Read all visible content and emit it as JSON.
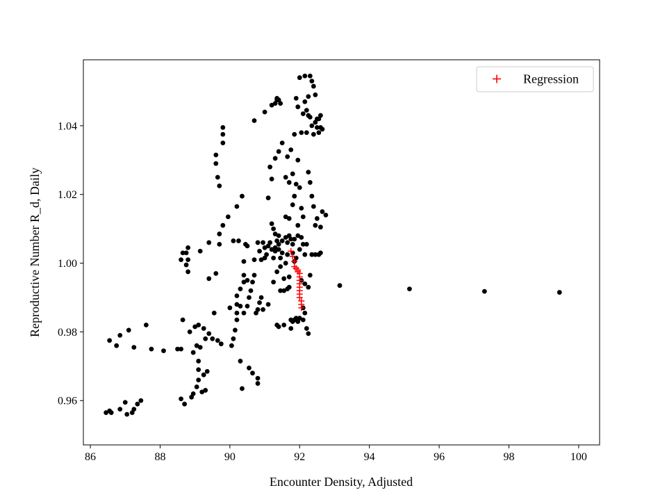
{
  "chart_data": {
    "type": "scatter",
    "title": "",
    "xlabel": "Encounter Density, Adjusted",
    "ylabel": "Reproductive Number R_d, Daily",
    "xlim": [
      85.8,
      100.6
    ],
    "ylim": [
      0.9471,
      1.0592
    ],
    "xticks": [
      86,
      88,
      90,
      92,
      94,
      96,
      98,
      100
    ],
    "xtick_labels": [
      "86",
      "88",
      "90",
      "92",
      "94",
      "96",
      "98",
      "100"
    ],
    "yticks": [
      0.96,
      0.98,
      1.0,
      1.02,
      1.04
    ],
    "ytick_labels": [
      "0.96",
      "0.98",
      "1.00",
      "1.02",
      "1.04"
    ],
    "grid": false,
    "legend": {
      "position": "top-right",
      "entries": [
        {
          "label": "Regression",
          "marker": "plus",
          "color": "#ff0000"
        }
      ]
    },
    "series": [
      {
        "marker": "circle",
        "color": "#000000",
        "points": [
          [
            86.45,
            0.9565
          ],
          [
            86.55,
            0.957
          ],
          [
            86.55,
            0.9775
          ],
          [
            86.6,
            0.9565
          ],
          [
            86.75,
            0.976
          ],
          [
            86.85,
            0.979
          ],
          [
            86.85,
            0.9575
          ],
          [
            87.0,
            0.9595
          ],
          [
            87.05,
            0.956
          ],
          [
            87.1,
            0.9805
          ],
          [
            87.2,
            0.9565
          ],
          [
            87.25,
            0.9575
          ],
          [
            87.25,
            0.9755
          ],
          [
            87.35,
            0.959
          ],
          [
            87.45,
            0.96
          ],
          [
            87.6,
            0.982
          ],
          [
            87.75,
            0.975
          ],
          [
            88.1,
            0.9745
          ],
          [
            88.5,
            0.975
          ],
          [
            88.6,
            0.975
          ],
          [
            88.6,
            0.9605
          ],
          [
            88.65,
            0.9835
          ],
          [
            88.7,
            0.959
          ],
          [
            88.6,
            1.001
          ],
          [
            88.65,
            1.003
          ],
          [
            88.75,
            1.003
          ],
          [
            88.75,
            0.9995
          ],
          [
            88.8,
            1.0045
          ],
          [
            88.8,
            1.001
          ],
          [
            88.8,
            0.9975
          ],
          [
            88.85,
            0.98
          ],
          [
            88.9,
            0.961
          ],
          [
            88.95,
            0.962
          ],
          [
            88.95,
            0.974
          ],
          [
            89.0,
            0.9815
          ],
          [
            89.05,
            0.976
          ],
          [
            89.05,
            0.964
          ],
          [
            89.1,
            0.982
          ],
          [
            89.1,
            0.966
          ],
          [
            89.1,
            0.969
          ],
          [
            89.1,
            0.9715
          ],
          [
            89.15,
            1.0035
          ],
          [
            89.15,
            0.9755
          ],
          [
            89.2,
            0.9625
          ],
          [
            89.25,
            0.981
          ],
          [
            89.25,
            0.9675
          ],
          [
            89.3,
            0.963
          ],
          [
            89.3,
            0.978
          ],
          [
            89.35,
            0.9685
          ],
          [
            89.4,
            0.9795
          ],
          [
            89.4,
            0.9955
          ],
          [
            89.4,
            1.006
          ],
          [
            89.5,
            0.978
          ],
          [
            89.55,
            0.9855
          ],
          [
            89.6,
            0.997
          ],
          [
            89.6,
            1.0315
          ],
          [
            89.6,
            1.029
          ],
          [
            89.65,
            1.025
          ],
          [
            89.65,
            0.9775
          ],
          [
            89.7,
            1.0225
          ],
          [
            89.7,
            1.0055
          ],
          [
            89.7,
            1.0085
          ],
          [
            89.75,
            0.9765
          ],
          [
            89.8,
            1.035
          ],
          [
            89.8,
            1.0375
          ],
          [
            89.8,
            1.0395
          ],
          [
            89.8,
            1.011
          ],
          [
            89.95,
            1.0135
          ],
          [
            90.0,
            0.987
          ],
          [
            90.05,
            0.976
          ],
          [
            90.1,
            0.978
          ],
          [
            90.1,
            1.0065
          ],
          [
            90.15,
            0.9805
          ],
          [
            90.2,
            0.9835
          ],
          [
            90.2,
            0.9855
          ],
          [
            90.2,
            0.988
          ],
          [
            90.2,
            0.9905
          ],
          [
            90.2,
            1.0165
          ],
          [
            90.25,
            1.0065
          ],
          [
            90.3,
            0.9925
          ],
          [
            90.3,
            0.9875
          ],
          [
            90.3,
            0.9715
          ],
          [
            90.35,
            1.0195
          ],
          [
            90.35,
            0.9635
          ],
          [
            90.4,
            0.9945
          ],
          [
            90.4,
            0.9855
          ],
          [
            90.4,
            0.9965
          ],
          [
            90.4,
            1.0005
          ],
          [
            90.45,
            1.0055
          ],
          [
            90.5,
            1.005
          ],
          [
            90.5,
            0.995
          ],
          [
            90.5,
            0.9875
          ],
          [
            90.55,
            0.99
          ],
          [
            90.55,
            0.9695
          ],
          [
            90.6,
            0.992
          ],
          [
            90.65,
            0.9945
          ],
          [
            90.65,
            0.968
          ],
          [
            90.7,
            0.9965
          ],
          [
            90.7,
            1.001
          ],
          [
            90.7,
            1.0415
          ],
          [
            90.75,
            0.9855
          ],
          [
            90.8,
            1.006
          ],
          [
            90.8,
            0.9865
          ],
          [
            90.8,
            0.965
          ],
          [
            90.8,
            0.9665
          ],
          [
            90.85,
            1.0035
          ],
          [
            90.85,
            0.9885
          ],
          [
            90.9,
            1.001
          ],
          [
            90.9,
            0.99
          ],
          [
            90.95,
            1.006
          ],
          [
            90.95,
            0.9865
          ],
          [
            91.0,
            1.0045
          ],
          [
            91.0,
            1.0015
          ],
          [
            91.0,
            1.044
          ],
          [
            91.05,
            1.0025
          ],
          [
            91.1,
            1.005
          ],
          [
            91.1,
            1.019
          ],
          [
            91.1,
            0.988
          ],
          [
            91.15,
            1.028
          ],
          [
            91.15,
            1.006
          ],
          [
            91.2,
            1.004
          ],
          [
            91.2,
            1.0115
          ],
          [
            91.2,
            1.0245
          ],
          [
            91.2,
            1.046
          ],
          [
            91.25,
            1.0015
          ],
          [
            91.25,
            1.01
          ],
          [
            91.25,
            0.9945
          ],
          [
            91.3,
            1.0085
          ],
          [
            91.3,
            1.0035
          ],
          [
            91.3,
            1.0305
          ],
          [
            91.3,
            1.0045
          ],
          [
            91.3,
            1.0465
          ],
          [
            91.35,
            1.0065
          ],
          [
            91.35,
            0.9975
          ],
          [
            91.35,
            1.0475
          ],
          [
            91.35,
            1.048
          ],
          [
            91.4,
            1.008
          ],
          [
            91.4,
            1.004
          ],
          [
            91.4,
            1.0055
          ],
          [
            91.4,
            1.0325
          ],
          [
            91.4,
            1.0475
          ],
          [
            91.45,
            0.999
          ],
          [
            91.45,
            1.0015
          ],
          [
            91.45,
            1.0465
          ],
          [
            91.45,
            0.992
          ],
          [
            91.5,
            1.0065
          ],
          [
            91.5,
            1.035
          ],
          [
            91.5,
            1.003
          ],
          [
            91.55,
            0.9955
          ],
          [
            91.55,
            0.992
          ],
          [
            91.6,
            1.0075
          ],
          [
            91.6,
            1.0
          ],
          [
            91.6,
            1.025
          ],
          [
            91.6,
            1.0135
          ],
          [
            91.65,
            1.0025
          ],
          [
            91.65,
            1.006
          ],
          [
            91.65,
            1.031
          ],
          [
            91.65,
            0.9925
          ],
          [
            91.7,
            0.996
          ],
          [
            91.7,
            1.008
          ],
          [
            91.7,
            1.0235
          ],
          [
            91.7,
            1.013
          ],
          [
            91.7,
            0.993
          ],
          [
            91.75,
            1.007
          ],
          [
            91.75,
            1.033
          ],
          [
            91.75,
            0.9835
          ],
          [
            91.8,
            1.003
          ],
          [
            91.8,
            1.0055
          ],
          [
            91.8,
            1.017
          ],
          [
            91.8,
            1.026
          ],
          [
            91.8,
            0.983
          ],
          [
            91.85,
            1.007
          ],
          [
            91.85,
            1.0195
          ],
          [
            91.85,
            1.0375
          ],
          [
            91.85,
            0.9835
          ],
          [
            91.85,
            1.0005
          ],
          [
            91.9,
            1.0015
          ],
          [
            91.9,
            1.048
          ],
          [
            91.9,
            1.023
          ],
          [
            91.9,
            0.984
          ],
          [
            91.95,
            1.008
          ],
          [
            91.95,
            1.011
          ],
          [
            91.95,
            1.03
          ],
          [
            91.95,
            1.0455
          ],
          [
            92.0,
            1.054
          ],
          [
            92.0,
            1.004
          ],
          [
            92.0,
            1.022
          ],
          [
            92.0,
            0.984
          ],
          [
            92.05,
            1.0075
          ],
          [
            92.05,
            1.038
          ],
          [
            92.05,
            1.016
          ],
          [
            92.1,
            1.0055
          ],
          [
            92.1,
            1.0435
          ],
          [
            92.1,
            1.0135
          ],
          [
            92.1,
            0.9835
          ],
          [
            92.15,
            1.0545
          ],
          [
            92.15,
            1.047
          ],
          [
            92.15,
            1.0025
          ],
          [
            92.15,
            0.9855
          ],
          [
            92.2,
            1.0445
          ],
          [
            92.2,
            1.038
          ],
          [
            92.2,
            0.981
          ],
          [
            92.2,
            1.0055
          ],
          [
            92.25,
            1.0485
          ],
          [
            92.25,
            1.043
          ],
          [
            92.25,
            0.993
          ],
          [
            92.25,
            1.0265
          ],
          [
            92.25,
            0.9795
          ],
          [
            92.3,
            1.0545
          ],
          [
            92.3,
            1.0425
          ],
          [
            92.3,
            0.9965
          ],
          [
            92.3,
            1.0235
          ],
          [
            92.35,
            1.053
          ],
          [
            92.35,
            1.04
          ],
          [
            92.35,
            1.0025
          ],
          [
            92.35,
            1.0195
          ],
          [
            92.4,
            1.0515
          ],
          [
            92.4,
            1.0375
          ],
          [
            92.4,
            1.0165
          ],
          [
            92.45,
            1.049
          ],
          [
            92.45,
            1.041
          ],
          [
            92.45,
            1.011
          ],
          [
            92.45,
            1.0025
          ],
          [
            92.5,
            1.042
          ],
          [
            92.5,
            1.0395
          ],
          [
            92.5,
            1.013
          ],
          [
            92.55,
            1.042
          ],
          [
            92.55,
            1.038
          ],
          [
            92.55,
            1.0025
          ],
          [
            92.6,
            1.043
          ],
          [
            92.6,
            1.0395
          ],
          [
            92.6,
            1.0105
          ],
          [
            92.6,
            1.003
          ],
          [
            92.65,
            1.039
          ],
          [
            92.65,
            1.015
          ],
          [
            92.75,
            1.014
          ],
          [
            91.75,
            0.981
          ],
          [
            91.95,
            0.983
          ],
          [
            92.05,
            0.995
          ],
          [
            92.1,
            0.987
          ],
          [
            92.15,
            0.994
          ],
          [
            91.55,
            0.982
          ],
          [
            91.4,
            0.9815
          ],
          [
            91.35,
            0.982
          ],
          [
            93.15,
            0.9935
          ],
          [
            95.15,
            0.9925
          ],
          [
            97.3,
            0.9918
          ],
          [
            99.45,
            0.9915
          ]
        ]
      },
      {
        "name": "Regression",
        "marker": "plus",
        "color": "#ff0000",
        "points": [
          [
            91.75,
            1.0035
          ],
          [
            91.8,
            1.002
          ],
          [
            91.85,
            1.0005
          ],
          [
            91.85,
            0.999
          ],
          [
            91.9,
            0.9985
          ],
          [
            91.95,
            0.998
          ],
          [
            91.95,
            0.9975
          ],
          [
            92.0,
            0.997
          ],
          [
            92.0,
            0.996
          ],
          [
            92.0,
            0.995
          ],
          [
            92.0,
            0.994
          ],
          [
            92.0,
            0.993
          ],
          [
            92.0,
            0.992
          ],
          [
            92.0,
            0.991
          ],
          [
            92.0,
            0.99
          ],
          [
            92.05,
            0.989
          ],
          [
            92.05,
            0.988
          ],
          [
            92.05,
            0.987
          ]
        ]
      }
    ]
  }
}
